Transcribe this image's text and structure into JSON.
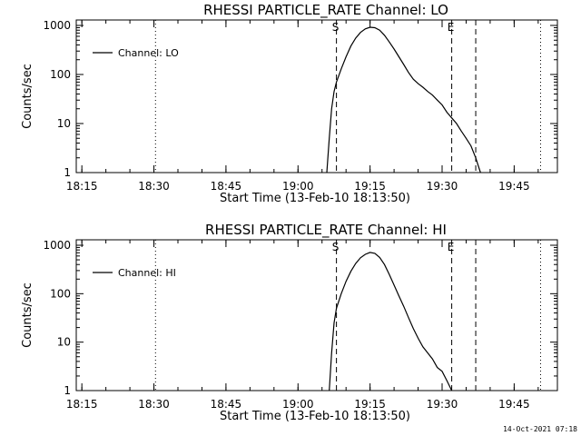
{
  "footer_timestamp": "14-Oct-2021 07:18",
  "chart_data": [
    {
      "type": "line",
      "title": "RHESSI PARTICLE_RATE Channel: LO",
      "xlabel": "Start Time (13-Feb-10 18:13:50)",
      "ylabel": "Counts/sec",
      "x_ticks": [
        "18:15",
        "18:30",
        "18:45",
        "19:00",
        "19:15",
        "19:30",
        "19:45"
      ],
      "y_ticks": [
        "1",
        "10",
        "100",
        "1000"
      ],
      "yscale": "log",
      "ylim": [
        1,
        1000
      ],
      "xlim": [
        "18:13:50",
        "19:54:00"
      ],
      "legend": "top-left",
      "series": [
        {
          "name": "Channel: LO",
          "points": [
            [
              "19:06:00",
              1
            ],
            [
              "19:06:30",
              5
            ],
            [
              "19:07:00",
              20
            ],
            [
              "19:07:30",
              45
            ],
            [
              "19:08:00",
              70
            ],
            [
              "19:09:00",
              130
            ],
            [
              "19:10:00",
              230
            ],
            [
              "19:11:00",
              380
            ],
            [
              "19:12:00",
              550
            ],
            [
              "19:13:00",
              720
            ],
            [
              "19:14:00",
              850
            ],
            [
              "19:15:00",
              920
            ],
            [
              "19:16:00",
              900
            ],
            [
              "19:17:00",
              800
            ],
            [
              "19:18:00",
              630
            ],
            [
              "19:19:00",
              460
            ],
            [
              "19:20:00",
              330
            ],
            [
              "19:21:00",
              230
            ],
            [
              "19:22:00",
              160
            ],
            [
              "19:23:00",
              110
            ],
            [
              "19:24:00",
              80
            ],
            [
              "19:25:00",
              65
            ],
            [
              "19:26:00",
              55
            ],
            [
              "19:27:00",
              45
            ],
            [
              "19:28:00",
              38
            ],
            [
              "19:29:00",
              30
            ],
            [
              "19:30:00",
              24
            ],
            [
              "19:31:00",
              17
            ],
            [
              "19:32:00",
              13
            ],
            [
              "19:33:00",
              10
            ],
            [
              "19:34:00",
              7
            ],
            [
              "19:35:00",
              5
            ],
            [
              "19:36:00",
              3.5
            ],
            [
              "19:37:00",
              2
            ],
            [
              "19:37:30",
              1.4
            ],
            [
              "19:38:00",
              1
            ]
          ]
        }
      ],
      "markers": [
        {
          "label": "S",
          "time": "19:08:00",
          "style": "dashed"
        },
        {
          "label": "E",
          "time": "19:32:00",
          "style": "dashed"
        },
        {
          "label": "",
          "time": "19:37:00",
          "style": "dashed"
        },
        {
          "label": "",
          "time": "18:30:20",
          "style": "dotted"
        },
        {
          "label": "",
          "time": "19:50:30",
          "style": "dotted"
        }
      ]
    },
    {
      "type": "line",
      "title": "RHESSI PARTICLE_RATE Channel: HI",
      "xlabel": "Start Time (13-Feb-10 18:13:50)",
      "ylabel": "Counts/sec",
      "x_ticks": [
        "18:15",
        "18:30",
        "18:45",
        "19:00",
        "19:15",
        "19:30",
        "19:45"
      ],
      "y_ticks": [
        "1",
        "10",
        "100",
        "1000"
      ],
      "yscale": "log",
      "ylim": [
        1,
        1000
      ],
      "xlim": [
        "18:13:50",
        "19:54:00"
      ],
      "legend": "top-left",
      "series": [
        {
          "name": "Channel: HI",
          "points": [
            [
              "19:06:30",
              1
            ],
            [
              "19:07:00",
              6
            ],
            [
              "19:07:30",
              25
            ],
            [
              "19:08:00",
              50
            ],
            [
              "19:09:00",
              100
            ],
            [
              "19:10:00",
              180
            ],
            [
              "19:11:00",
              290
            ],
            [
              "19:12:00",
              420
            ],
            [
              "19:13:00",
              550
            ],
            [
              "19:14:00",
              650
            ],
            [
              "19:15:00",
              710
            ],
            [
              "19:16:00",
              680
            ],
            [
              "19:17:00",
              560
            ],
            [
              "19:18:00",
              400
            ],
            [
              "19:19:00",
              250
            ],
            [
              "19:20:00",
              150
            ],
            [
              "19:21:00",
              90
            ],
            [
              "19:22:00",
              55
            ],
            [
              "19:23:00",
              32
            ],
            [
              "19:24:00",
              19
            ],
            [
              "19:25:00",
              12
            ],
            [
              "19:26:00",
              8
            ],
            [
              "19:27:00",
              6
            ],
            [
              "19:28:00",
              4.5
            ],
            [
              "19:29:00",
              3
            ],
            [
              "19:30:00",
              2.5
            ],
            [
              "19:31:00",
              1.6
            ],
            [
              "19:32:00",
              1
            ]
          ]
        }
      ],
      "markers": [
        {
          "label": "S",
          "time": "19:08:00",
          "style": "dashed"
        },
        {
          "label": "E",
          "time": "19:32:00",
          "style": "dashed"
        },
        {
          "label": "",
          "time": "19:37:00",
          "style": "dashed"
        },
        {
          "label": "",
          "time": "18:30:20",
          "style": "dotted"
        },
        {
          "label": "",
          "time": "19:50:30",
          "style": "dotted"
        }
      ]
    }
  ]
}
